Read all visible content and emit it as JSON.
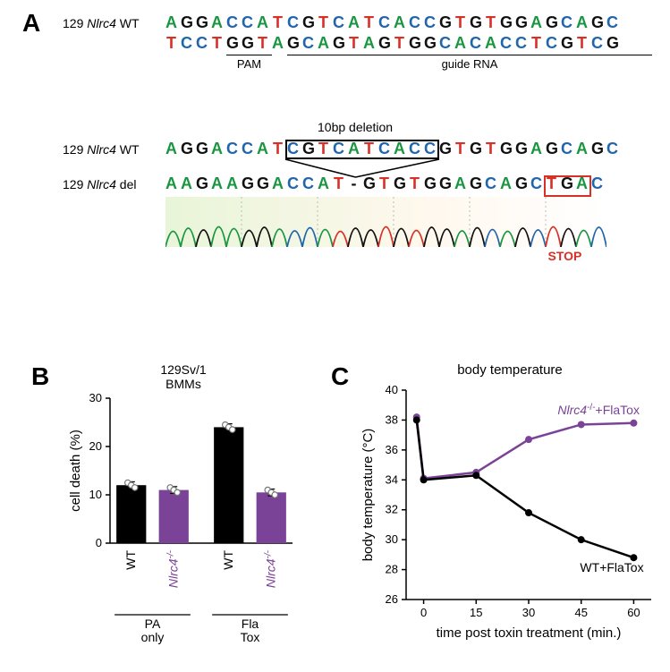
{
  "panels": {
    "A": {
      "label": "A"
    },
    "B": {
      "label": "B"
    },
    "C": {
      "label": "C"
    }
  },
  "panelA": {
    "row1_label_prefix": "129 ",
    "row1_label_italic": "Nlrc4",
    "row1_label_suffix": " WT",
    "row1_seq": "AGGACCATCGTCATCACCGTGTGGAGCAGC",
    "row2_seq": "TCCTGGTAGCAGTAGTGGCACACCTCGTCG",
    "pam_label": "PAM",
    "guide_label": "guide RNA",
    "pam_width_bases": 3,
    "guide_width_bases": 24,
    "gap_after_pam_bases": 1,
    "row3_label_prefix": "129 ",
    "row3_label_italic": "Nlrc4",
    "row3_label_suffix": " WT",
    "row3_seq": "AGGACCATCGTCATCACCGTGTGGAGCAGC",
    "row4_label_prefix": "129 ",
    "row4_label_italic": "Nlrc4",
    "row4_label_suffix": " del",
    "row4_seq": "AAGAAGGACCAT-GTGTGGAGCAGCTGAC",
    "del_box_label": "10bp deletion",
    "del_box_start_base": 8,
    "del_box_end_base": 17,
    "stop_label": "STOP",
    "stop_box_start_base": 25,
    "stop_box_end_base": 27,
    "base_colors": {
      "A": "#1a9641",
      "G": "#111111",
      "C": "#2166ac",
      "T": "#d73027",
      "dash": "#111111"
    }
  },
  "panelB": {
    "title_line1": "129Sv/1",
    "title_line2": "BMMs",
    "ylabel": "cell death (%)",
    "ylim": [
      0,
      30
    ],
    "ytick_step": 10,
    "yticks": [
      0,
      10,
      20,
      30
    ],
    "groups": [
      {
        "group_label": "PA only",
        "bars": [
          {
            "label": "WT",
            "value": 12,
            "points": [
              12.5,
              12,
              11.5
            ],
            "fill": "#000000"
          },
          {
            "label": "Nlrc4-/-",
            "label_italic": true,
            "value": 11,
            "points": [
              11.5,
              11,
              10.5
            ],
            "fill": "#7b4397"
          }
        ]
      },
      {
        "group_label": "Fla Tox",
        "bars": [
          {
            "label": "WT",
            "value": 24,
            "points": [
              24.5,
              24,
              23.5
            ],
            "fill": "#000000"
          },
          {
            "label": "Nlrc4-/-",
            "label_italic": true,
            "value": 10.5,
            "points": [
              11,
              10.5,
              10
            ],
            "fill": "#7b4397"
          }
        ]
      }
    ],
    "bar_width": 0.7,
    "colors": {
      "wt": "#000000",
      "ko": "#7b4397",
      "point_fill": "#ffffff",
      "point_stroke": "#777777",
      "grid": "#000000"
    },
    "ko_label_color": "#7b4397",
    "font_size_axis": 13,
    "font_size_label": 15
  },
  "panelC": {
    "title": "body temperature",
    "xlabel": "time post toxin treatment (min.)",
    "ylabel": "body temperature (°C)",
    "xlim": [
      -5,
      65
    ],
    "ylim": [
      26,
      40
    ],
    "xticks": [
      0,
      15,
      30,
      45,
      60
    ],
    "yticks": [
      26,
      28,
      30,
      32,
      34,
      36,
      38,
      40
    ],
    "series": [
      {
        "name": "Nlrc4-/-+FlaTox",
        "name_italic_prefix": "Nlrc4",
        "name_sup": "-/-",
        "name_suffix": "+FlaTox",
        "color": "#7b4397",
        "line_width": 2.5,
        "marker_size": 4,
        "points": [
          [
            -2,
            38.2
          ],
          [
            0,
            34.1
          ],
          [
            15,
            34.5
          ],
          [
            30,
            36.7
          ],
          [
            45,
            37.7
          ],
          [
            60,
            37.8
          ]
        ]
      },
      {
        "name": "WT+FlaTox",
        "color": "#000000",
        "line_width": 2.5,
        "marker_size": 4,
        "points": [
          [
            -2,
            38.0
          ],
          [
            0,
            34.0
          ],
          [
            15,
            34.3
          ],
          [
            30,
            31.8
          ],
          [
            45,
            30.0
          ],
          [
            60,
            28.8
          ]
        ]
      }
    ],
    "font_size_axis": 13,
    "font_size_label": 15,
    "background": "#ffffff"
  }
}
